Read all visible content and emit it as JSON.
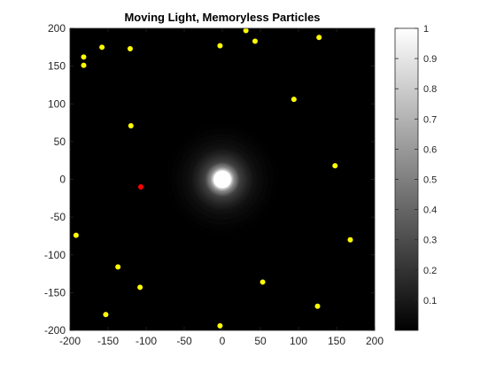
{
  "chart_data": {
    "type": "scatter",
    "title": "Moving Light, Memoryless Particles",
    "xlim": [
      -200,
      200
    ],
    "ylim": [
      -200,
      200
    ],
    "xticks": [
      "-200",
      "-150",
      "-100",
      "-50",
      "0",
      "50",
      "100",
      "150",
      "200"
    ],
    "yticks": [
      "200",
      "150",
      "100",
      "50",
      "0",
      "-50",
      "-100",
      "-150",
      "-200"
    ],
    "background_color": "#000000",
    "light_source": {
      "x": 0,
      "y": 0,
      "color": "#ffffff"
    },
    "particles": {
      "color": "#ffff00",
      "points": [
        {
          "x": -182,
          "y": 162
        },
        {
          "x": -182,
          "y": 151
        },
        {
          "x": -158,
          "y": 175
        },
        {
          "x": -121,
          "y": 173
        },
        {
          "x": -3,
          "y": 177
        },
        {
          "x": 31,
          "y": 197
        },
        {
          "x": 43,
          "y": 183
        },
        {
          "x": 127,
          "y": 188
        },
        {
          "x": 94,
          "y": 106
        },
        {
          "x": -120,
          "y": 71
        },
        {
          "x": 148,
          "y": 18
        },
        {
          "x": -192,
          "y": -74
        },
        {
          "x": 168,
          "y": -80
        },
        {
          "x": -137,
          "y": -116
        },
        {
          "x": -108,
          "y": -143
        },
        {
          "x": 53,
          "y": -136
        },
        {
          "x": 125,
          "y": -168
        },
        {
          "x": -153,
          "y": -179
        },
        {
          "x": -3,
          "y": -194
        }
      ]
    },
    "highlight_particle": {
      "x": -107,
      "y": -10,
      "color": "#ff0000"
    },
    "colorbar": {
      "colormap": "gray",
      "range": [
        0,
        1
      ],
      "ticks": [
        "0.1",
        "0.2",
        "0.3",
        "0.4",
        "0.5",
        "0.6",
        "0.7",
        "0.8",
        "0.9",
        "1"
      ]
    }
  }
}
